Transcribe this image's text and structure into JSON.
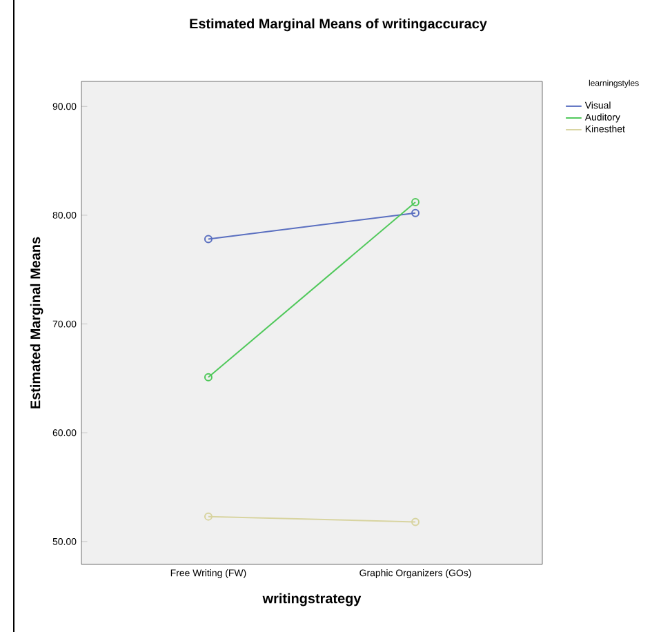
{
  "chart_data": {
    "type": "line",
    "title": "Estimated Marginal Means of writingaccuracy",
    "xlabel": "writingstrategy",
    "ylabel": "Estimated Marginal Means",
    "legend_title": "learningstyles",
    "categories": [
      "Free Writing (FW)",
      "Graphic Organizers (GOs)"
    ],
    "series": [
      {
        "name": "Visual",
        "color": "#5a6fc0",
        "values": [
          77.8,
          80.2
        ]
      },
      {
        "name": "Auditory",
        "color": "#4fc85a",
        "values": [
          65.1,
          81.2
        ]
      },
      {
        "name": "Kinesthet",
        "color": "#d8d4a0",
        "values": [
          52.3,
          51.8
        ]
      }
    ],
    "ylim": [
      47.9,
      92.3
    ],
    "yticks": [
      {
        "value": 50,
        "label": "50.00"
      },
      {
        "value": 60,
        "label": "60.00"
      },
      {
        "value": 70,
        "label": "70.00"
      },
      {
        "value": 80,
        "label": "80.00"
      },
      {
        "value": 90,
        "label": "90.00"
      }
    ],
    "marker": "circle",
    "legend": "top right",
    "grid": false
  }
}
